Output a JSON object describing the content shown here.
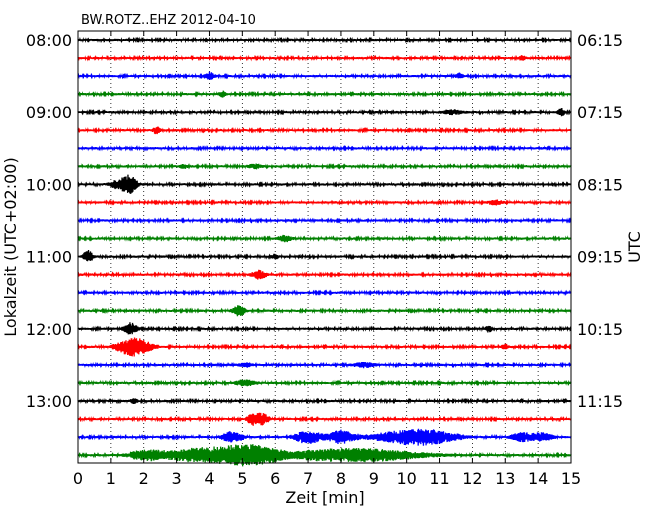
{
  "chart_data": {
    "type": "line",
    "title": "BW.ROTZ..EHZ 2012-04-10",
    "xlabel": "Zeit  [min]",
    "ylabel": "Lokalzeit (UTC+02:00)",
    "ylabel_right": "UTC",
    "xlim": [
      0,
      15
    ],
    "x_ticks": [
      "0",
      "1",
      "2",
      "3",
      "4",
      "5",
      "6",
      "7",
      "8",
      "9",
      "10",
      "11",
      "12",
      "13",
      "14",
      "15"
    ],
    "trace_interval_min": 15,
    "first_trace_local": "08:00",
    "left_ticks": [
      "08:00",
      "09:00",
      "10:00",
      "11:00",
      "12:00",
      "13:00"
    ],
    "right_ticks": [
      "06:15",
      "07:15",
      "08:15",
      "09:15",
      "10:15",
      "11:15"
    ],
    "grid": "vertical dotted at each minute",
    "colors": [
      "#000000",
      "#ff0000",
      "#0000ff",
      "#008000"
    ],
    "series": [
      {
        "start": "08:00",
        "color": "#000000",
        "events": []
      },
      {
        "start": "08:15",
        "color": "#ff0000",
        "events": [
          {
            "t": 13.5,
            "amp": 0.3,
            "dur": 0.1
          }
        ]
      },
      {
        "start": "08:30",
        "color": "#0000ff",
        "events": [
          {
            "t": 4.0,
            "amp": 0.5,
            "dur": 0.15
          },
          {
            "t": 11.6,
            "amp": 0.4,
            "dur": 0.1
          }
        ]
      },
      {
        "start": "08:45",
        "color": "#008000",
        "events": [
          {
            "t": 4.4,
            "amp": 0.4,
            "dur": 0.1
          }
        ]
      },
      {
        "start": "09:00",
        "color": "#000000",
        "events": [
          {
            "t": 11.4,
            "amp": 0.3,
            "dur": 0.3
          },
          {
            "t": 14.7,
            "amp": 0.5,
            "dur": 0.1
          }
        ]
      },
      {
        "start": "09:15",
        "color": "#ff0000",
        "events": [
          {
            "t": 2.4,
            "amp": 0.5,
            "dur": 0.1
          }
        ]
      },
      {
        "start": "09:30",
        "color": "#0000ff",
        "events": []
      },
      {
        "start": "09:45",
        "color": "#008000",
        "events": [
          {
            "t": 3.2,
            "amp": 0.3,
            "dur": 0.1
          },
          {
            "t": 5.4,
            "amp": 0.3,
            "dur": 0.2
          }
        ]
      },
      {
        "start": "10:00",
        "color": "#000000",
        "events": [
          {
            "t": 1.3,
            "amp": 0.7,
            "dur": 0.3
          },
          {
            "t": 1.6,
            "amp": 1.0,
            "dur": 0.2
          }
        ]
      },
      {
        "start": "10:15",
        "color": "#ff0000",
        "events": [
          {
            "t": 12.7,
            "amp": 0.3,
            "dur": 0.2
          }
        ]
      },
      {
        "start": "10:30",
        "color": "#0000ff",
        "events": []
      },
      {
        "start": "10:45",
        "color": "#008000",
        "events": [
          {
            "t": 6.3,
            "amp": 0.4,
            "dur": 0.2
          }
        ]
      },
      {
        "start": "11:00",
        "color": "#000000",
        "events": [
          {
            "t": 0.3,
            "amp": 0.8,
            "dur": 0.15
          },
          {
            "t": 6.0,
            "amp": 0.3,
            "dur": 0.1
          }
        ]
      },
      {
        "start": "11:15",
        "color": "#ff0000",
        "events": [
          {
            "t": 5.5,
            "amp": 0.6,
            "dur": 0.2
          }
        ]
      },
      {
        "start": "11:30",
        "color": "#0000ff",
        "events": []
      },
      {
        "start": "11:45",
        "color": "#008000",
        "events": [
          {
            "t": 4.9,
            "amp": 0.7,
            "dur": 0.2
          }
        ]
      },
      {
        "start": "12:00",
        "color": "#000000",
        "events": [
          {
            "t": 1.6,
            "amp": 0.8,
            "dur": 0.2
          },
          {
            "t": 12.5,
            "amp": 0.4,
            "dur": 0.1
          }
        ]
      },
      {
        "start": "12:15",
        "color": "#ff0000",
        "events": [
          {
            "t": 1.7,
            "amp": 1.3,
            "dur": 0.5
          },
          {
            "t": 13.0,
            "amp": 0.3,
            "dur": 0.1
          }
        ]
      },
      {
        "start": "12:30",
        "color": "#0000ff",
        "events": [
          {
            "t": 5.1,
            "amp": 0.3,
            "dur": 0.2
          },
          {
            "t": 8.7,
            "amp": 0.3,
            "dur": 0.3
          }
        ]
      },
      {
        "start": "12:45",
        "color": "#008000",
        "events": [
          {
            "t": 5.1,
            "amp": 0.4,
            "dur": 0.3
          }
        ]
      },
      {
        "start": "13:00",
        "color": "#000000",
        "events": [
          {
            "t": 1.7,
            "amp": 0.3,
            "dur": 0.1
          }
        ]
      },
      {
        "start": "13:15",
        "color": "#ff0000",
        "events": [
          {
            "t": 5.3,
            "amp": 0.7,
            "dur": 0.15
          },
          {
            "t": 5.6,
            "amp": 0.8,
            "dur": 0.2
          }
        ]
      },
      {
        "start": "13:30",
        "color": "#0000ff",
        "events": [
          {
            "t": 4.7,
            "amp": 0.8,
            "dur": 0.3
          },
          {
            "t": 7.0,
            "amp": 0.9,
            "dur": 0.4
          },
          {
            "t": 8.0,
            "amp": 0.9,
            "dur": 0.4
          },
          {
            "t": 10.0,
            "amp": 0.6,
            "dur": 1.2
          },
          {
            "t": 10.6,
            "amp": 0.6,
            "dur": 1.0
          },
          {
            "t": 13.5,
            "amp": 0.6,
            "dur": 0.3
          },
          {
            "t": 14.1,
            "amp": 0.6,
            "dur": 0.3
          }
        ]
      },
      {
        "start": "13:45",
        "color": "#008000",
        "events": [
          {
            "t": 2.0,
            "amp": 0.5,
            "dur": 0.5
          },
          {
            "t": 4.0,
            "amp": 1.0,
            "dur": 1.6
          },
          {
            "t": 5.3,
            "amp": 0.9,
            "dur": 0.8
          },
          {
            "t": 7.5,
            "amp": 0.6,
            "dur": 1.5
          },
          {
            "t": 9.2,
            "amp": 0.6,
            "dur": 1.5
          }
        ]
      }
    ]
  }
}
